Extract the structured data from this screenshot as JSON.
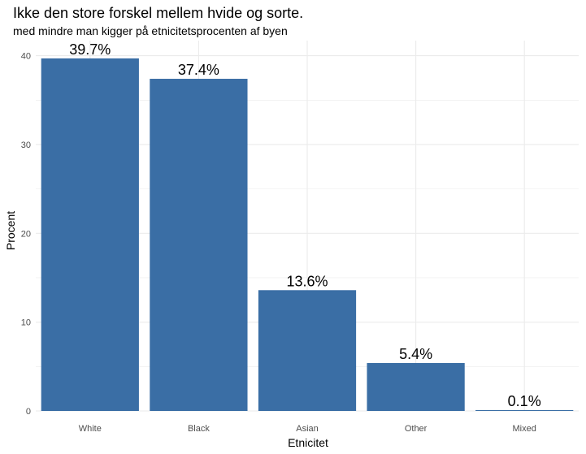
{
  "chart_data": {
    "type": "bar",
    "title": "Ikke den store forskel mellem hvide og sorte.",
    "subtitle": "med mindre man kigger på etnicitetsprocenten af byen",
    "xlabel": "Etnicitet",
    "ylabel": "Procent",
    "categories": [
      "White",
      "Black",
      "Asian",
      "Other",
      "Mixed"
    ],
    "values": [
      39.7,
      37.4,
      13.6,
      5.4,
      0.1
    ],
    "data_labels": [
      "39.7%",
      "37.4%",
      "13.6%",
      "5.4%",
      "0.1%"
    ],
    "yticks": [
      "0",
      "10",
      "20",
      "30",
      "40"
    ],
    "ytick_values": [
      0,
      10,
      20,
      30,
      40
    ],
    "ylim": [
      0,
      41.7
    ],
    "grid": true,
    "bar_color": "#3A6EA5",
    "grid_color": "#EBEBEB"
  }
}
